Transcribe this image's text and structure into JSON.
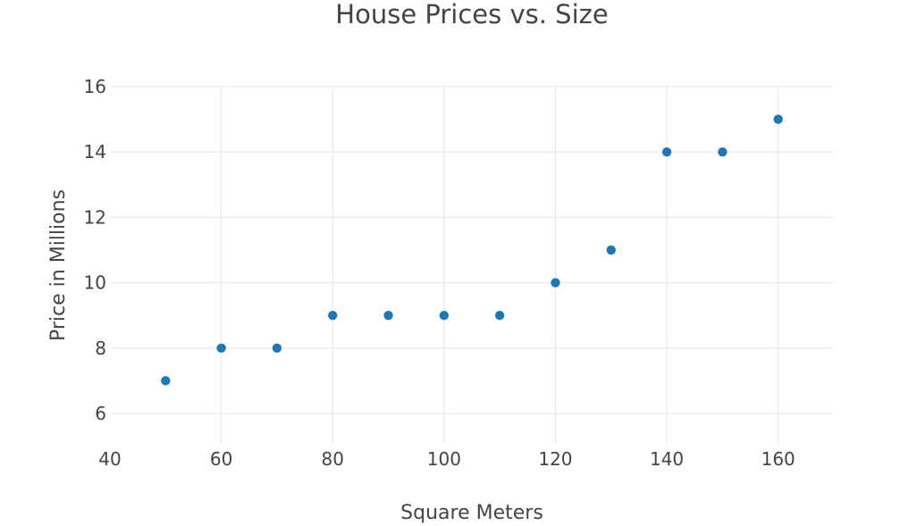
{
  "chart_data": {
    "type": "scatter",
    "title": "House Prices vs. Size",
    "xlabel": "Square Meters",
    "ylabel": "Price in Millions",
    "x": [
      50,
      60,
      70,
      80,
      90,
      100,
      110,
      120,
      130,
      140,
      150,
      160
    ],
    "y": [
      7,
      8,
      8,
      9,
      9,
      9,
      9,
      10,
      11,
      14,
      14,
      15
    ],
    "xticks": [
      40,
      60,
      80,
      100,
      120,
      140,
      160
    ],
    "yticks": [
      6,
      8,
      10,
      12,
      14,
      16
    ],
    "xlim": [
      40,
      170
    ],
    "ylim": [
      5.07,
      16
    ],
    "grid": true,
    "legend": false,
    "marker_color": "#1f77b4",
    "marker_radius": 5.2,
    "grid_color": "#e5e5e5",
    "text_color": "#444444",
    "background_color": "#ffffff"
  }
}
